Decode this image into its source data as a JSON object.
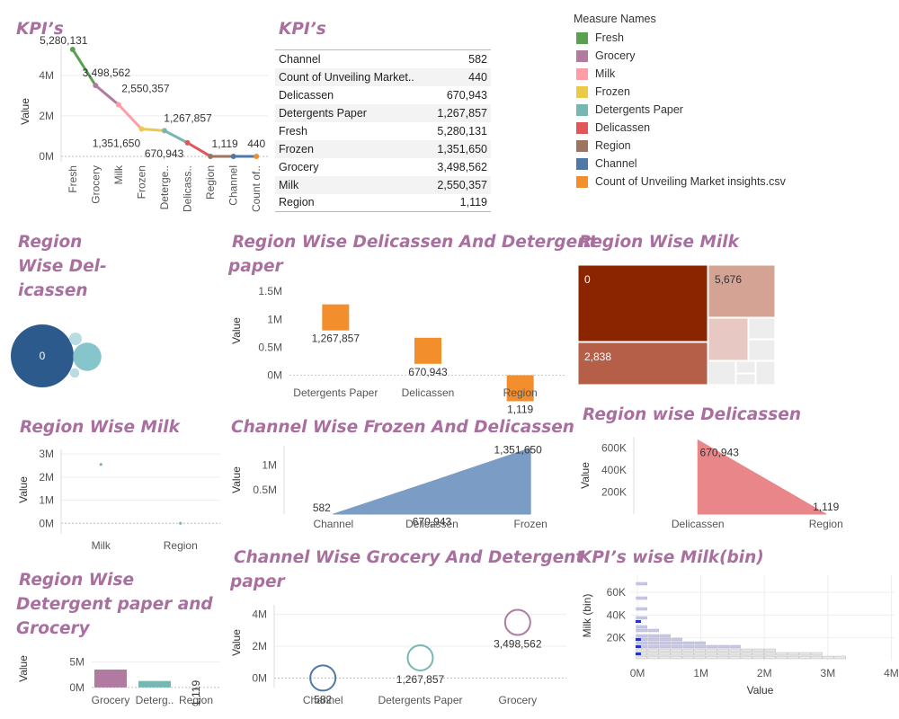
{
  "titles": {
    "kpi_line": "KPI’s",
    "kpi_table": "KPI’s",
    "region_delicassen": [
      "Region",
      "Wise Del-",
      "icassen"
    ],
    "region_deli_det": [
      "Region Wise Delicassen And Detergent",
      "paper"
    ],
    "region_milk_tree": "Region Wise Milk",
    "region_milk_scatter": "Region Wise Milk",
    "channel_frozen_deli": "Channel Wise Frozen And Delicassen",
    "region_delicassen_area": "Region wise Delicassen",
    "region_det_grocery": [
      "Region Wise",
      "Detergent paper and",
      "Grocery"
    ],
    "channel_grocery_det": [
      "Channel Wise Grocery And Detergent",
      "paper"
    ],
    "kpi_milk_bin": "KPI’s wise Milk(bin)"
  },
  "legend": {
    "title": "Measure Names",
    "items": [
      {
        "label": "Fresh",
        "color": "#59a14f"
      },
      {
        "label": "Grocery",
        "color": "#b07aa1"
      },
      {
        "label": "Milk",
        "color": "#ff9da7"
      },
      {
        "label": "Frozen",
        "color": "#edc948"
      },
      {
        "label": "Detergents Paper",
        "color": "#76b7b2"
      },
      {
        "label": "Delicassen",
        "color": "#e15759"
      },
      {
        "label": "Region",
        "color": "#9c755f"
      },
      {
        "label": "Channel",
        "color": "#4e79a7"
      },
      {
        "label": "Count of Unveiling Market insights.csv",
        "color": "#f28e2b"
      }
    ]
  },
  "kpi_table": [
    {
      "name": "Channel",
      "value": "582"
    },
    {
      "name": "Count of Unveiling Market..",
      "value": "440"
    },
    {
      "name": "Delicassen",
      "value": "670,943"
    },
    {
      "name": "Detergents Paper",
      "value": "1,267,857"
    },
    {
      "name": "Fresh",
      "value": "5,280,131"
    },
    {
      "name": "Frozen",
      "value": "1,351,650"
    },
    {
      "name": "Grocery",
      "value": "3,498,562"
    },
    {
      "name": "Milk",
      "value": "2,550,357"
    },
    {
      "name": "Region",
      "value": "1,119"
    }
  ],
  "chart_data": [
    {
      "id": "kpi_line",
      "type": "line",
      "ylabel": "Value",
      "categories": [
        "Fresh",
        "Grocery",
        "Milk",
        "Frozen",
        "Deterge..",
        "Delicass..",
        "Region",
        "Channel",
        "Count of.."
      ],
      "values": [
        5280131,
        3498562,
        2550357,
        1351650,
        1267857,
        670943,
        1119,
        582,
        440
      ],
      "labels": [
        "5,280,131",
        "3,498,562",
        "2,550,357",
        "1,351,650",
        "1,267,857",
        "670,943",
        "1,119",
        "",
        "440"
      ],
      "colors": [
        "#59a14f",
        "#b07aa1",
        "#ff9da7",
        "#edc948",
        "#76b7b2",
        "#e15759",
        "#9c755f",
        "#4e79a7",
        "#f28e2b"
      ],
      "yticks": [
        0,
        2000000,
        4000000
      ],
      "ytick_labels": [
        "0M",
        "2M",
        "4M"
      ],
      "ylim": [
        0,
        5500000
      ]
    },
    {
      "id": "region_delicassen",
      "type": "bubble",
      "bubbles": [
        {
          "label": "0",
          "size": 1.0,
          "color": "#2d5a8c"
        },
        {
          "label": "",
          "size": 0.45,
          "color": "#86c5cc"
        },
        {
          "label": "",
          "size": 0.2,
          "color": "#b8dde1"
        },
        {
          "label": "",
          "size": 0.15,
          "color": "#b8dde1"
        }
      ]
    },
    {
      "id": "region_deli_det",
      "type": "gantt-bar",
      "ylabel": "Value",
      "categories": [
        "Detergents Paper",
        "Delicassen",
        "Region"
      ],
      "values": [
        1267857,
        670943,
        1119
      ],
      "labels": [
        "1,267,857",
        "670,943",
        "1,119"
      ],
      "color": "#f28e2b",
      "yticks": [
        0,
        500000,
        1000000,
        1500000
      ],
      "ytick_labels": [
        "0M",
        "0.5M",
        "1M",
        "1.5M"
      ],
      "ylim": [
        -200000,
        1600000
      ]
    },
    {
      "id": "region_milk_tree",
      "type": "treemap",
      "cells": [
        {
          "label": "0",
          "color": "#8b2500"
        },
        {
          "label": "5,676",
          "color": "#d4a394"
        },
        {
          "label": "2,838",
          "color": "#b55e48"
        },
        {
          "label": "",
          "color": "#e8c8c2"
        },
        {
          "label": "",
          "color": "#ededed"
        }
      ]
    },
    {
      "id": "region_milk_scatter",
      "type": "scatter",
      "ylabel": "Value",
      "categories": [
        "Milk",
        "Region"
      ],
      "values": [
        2550357,
        1119
      ],
      "color": "#76b7b2",
      "yticks": [
        0,
        1000000,
        2000000,
        3000000
      ],
      "ytick_labels": [
        "0M",
        "1M",
        "2M",
        "3M"
      ],
      "ylim": [
        -300000,
        3200000
      ]
    },
    {
      "id": "channel_frozen_deli",
      "type": "area",
      "ylabel": "Value",
      "categories": [
        "Channel",
        "Delicassen",
        "Frozen"
      ],
      "values": [
        582,
        670943,
        1351650
      ],
      "labels": [
        "582",
        "670,943",
        "1,351,650"
      ],
      "color": "#7b9cc4",
      "yticks": [
        500000,
        1000000
      ],
      "ytick_labels": [
        "0.5M",
        "1M"
      ],
      "ylim": [
        0,
        1400000
      ]
    },
    {
      "id": "region_delicassen_area",
      "type": "area",
      "ylabel": "Value",
      "categories": [
        "Delicassen",
        "Region"
      ],
      "values": [
        670943,
        1119
      ],
      "labels": [
        "670,943",
        "1,119"
      ],
      "color": "#e8868a",
      "yticks": [
        200000,
        400000,
        600000
      ],
      "ytick_labels": [
        "200K",
        "400K",
        "600K"
      ],
      "ylim": [
        0,
        700000
      ]
    },
    {
      "id": "region_det_grocery",
      "type": "bar",
      "ylabel": "Value",
      "categories": [
        "Grocery",
        "Deterg..",
        "Region"
      ],
      "values": [
        3498562,
        1267857,
        1119
      ],
      "labels": [
        "",
        "",
        "1,119"
      ],
      "colors": [
        "#b07aa1",
        "#76b7b2",
        "#9c755f"
      ],
      "yticks": [
        0,
        5000000
      ],
      "ytick_labels": [
        "0M",
        "5M"
      ],
      "ylim": [
        -900000,
        6500000
      ]
    },
    {
      "id": "channel_grocery_det",
      "type": "circle",
      "ylabel": "Value",
      "categories": [
        "Channel",
        "Detergents Paper",
        "Grocery"
      ],
      "values": [
        582,
        1267857,
        3498562
      ],
      "labels": [
        "582",
        "1,267,857",
        "3,498,562"
      ],
      "colors": [
        "#4e79a7",
        "#76b7b2",
        "#b07aa1"
      ],
      "yticks": [
        0,
        2000000,
        4000000
      ],
      "ytick_labels": [
        "0M",
        "2M",
        "4M"
      ],
      "ylim": [
        -600000,
        4600000
      ]
    },
    {
      "id": "kpi_milk_bin",
      "type": "histogram-grid",
      "xlabel": "Value",
      "ylabel": "Milk (bin)",
      "xticks": [
        0,
        1000000,
        2000000,
        3000000,
        4000000
      ],
      "xtick_labels": [
        "0M",
        "1M",
        "2M",
        "3M",
        "4M"
      ],
      "yticks": [
        20000,
        40000,
        60000
      ],
      "ytick_labels": [
        "20K",
        "40K",
        "60K"
      ],
      "xlim": [
        -100000,
        4050000
      ],
      "ylim": [
        0,
        75000
      ]
    }
  ]
}
